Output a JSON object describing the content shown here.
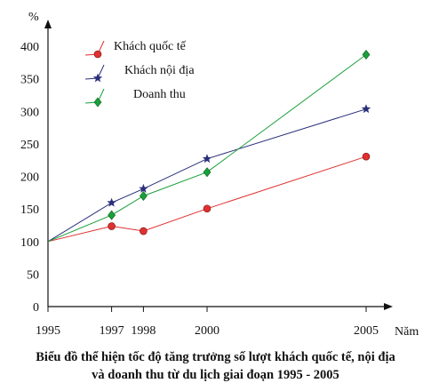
{
  "chart_data": {
    "type": "line",
    "title": "Biểu đồ thể hiện tốc độ tăng trưởng số lượt khách quốc tế, nội địa",
    "title_line2": "và doanh thu từ du lịch giai đoạn 1995 - 2005",
    "xlabel": "Năm",
    "ylabel": "%",
    "x": [
      1995,
      1997,
      1998,
      2000,
      2005
    ],
    "x_tick_labels": [
      "1995",
      "1997",
      "1998",
      "2000",
      "2005"
    ],
    "y_ticks": [
      "0",
      "50",
      "100",
      "150",
      "200",
      "250",
      "300",
      "350",
      "400"
    ],
    "ylim": [
      0,
      400
    ],
    "grid": false,
    "legend_position": "top-left",
    "series": [
      {
        "name": "Khách quốc tế",
        "color": "#e03030",
        "marker": "circle",
        "values": [
          100,
          123.5,
          116,
          150.5,
          230.5
        ]
      },
      {
        "name": "Khách nội địa",
        "color": "#2a2f7a",
        "marker": "star",
        "values": [
          100,
          159.5,
          181,
          227,
          303.5
        ]
      },
      {
        "name": "Doanh thu",
        "color": "#1aa03a",
        "marker": "diamond",
        "values": [
          100,
          140.5,
          170,
          206.5,
          387
        ]
      }
    ]
  }
}
